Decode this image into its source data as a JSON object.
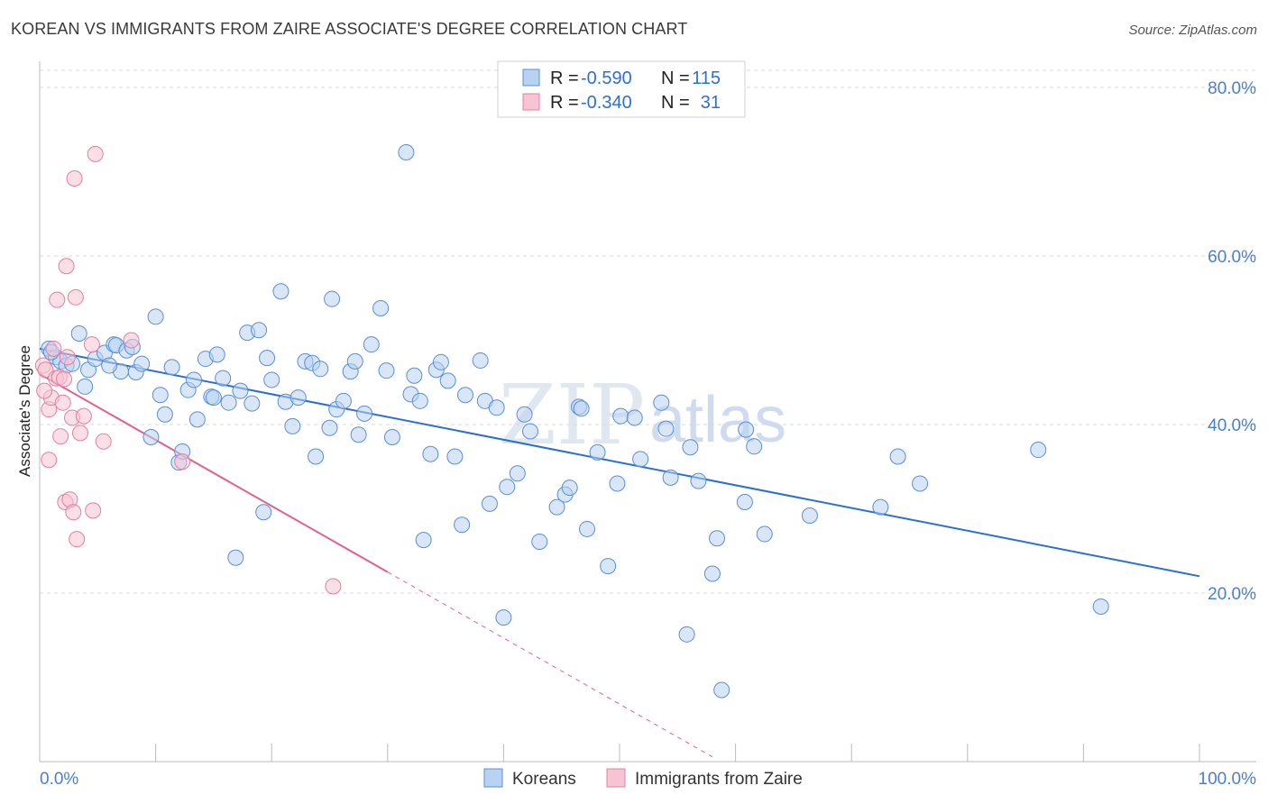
{
  "header": {
    "title": "KOREAN VS IMMIGRANTS FROM ZAIRE ASSOCIATE'S DEGREE CORRELATION CHART",
    "source": "Source: ZipAtlas.com"
  },
  "watermark": {
    "zip": "ZIP",
    "atlas": "atlas"
  },
  "legend": {
    "rows": [
      {
        "r_label": "R =",
        "r_value": "-0.590",
        "n_label": "N =",
        "n_value": "115"
      },
      {
        "r_label": "R =",
        "r_value": "-0.340",
        "n_label": "N =",
        "n_value": "31"
      }
    ]
  },
  "bottom_legend": {
    "items": [
      "Koreans",
      "Immigrants from Zaire"
    ]
  },
  "colors": {
    "koreans_fill": "#b8d2f2",
    "koreans_stroke": "#5a8fd6",
    "koreans_line": "#2b6fcf",
    "zaire_fill": "#f7c4d4",
    "zaire_stroke": "#e47fa0",
    "zaire_line": "#e0608f",
    "grid": "#d9d9d9",
    "axis": "#bbbbbb"
  },
  "chart_data": {
    "type": "scatter",
    "title": "KOREAN VS IMMIGRANTS FROM ZAIRE ASSOCIATE'S DEGREE CORRELATION CHART",
    "xlabel": "",
    "ylabel": "Associate's Degree",
    "xlim": [
      0,
      100
    ],
    "ylim": [
      0,
      80
    ],
    "x_tick_labels": [
      "0.0%",
      "100.0%"
    ],
    "y_ticks": [
      20,
      40,
      60,
      80
    ],
    "y_tick_labels": [
      "20.0%",
      "40.0%",
      "60.0%",
      "80.0%"
    ],
    "grid": true,
    "legend_position": "top-center",
    "series": [
      {
        "name": "Koreans",
        "r": -0.59,
        "n": 115,
        "trend": {
          "x0": 0,
          "y0": 49,
          "x1": 100,
          "y1": 22,
          "dashed_to": 100
        },
        "points": [
          [
            0.8,
            49
          ],
          [
            1.4,
            48
          ],
          [
            1.8,
            47.5
          ],
          [
            2.3,
            47
          ],
          [
            3.4,
            50.8
          ],
          [
            3.9,
            44.5
          ],
          [
            4.2,
            46.5
          ],
          [
            4.8,
            47.8
          ],
          [
            5.6,
            48.5
          ],
          [
            6.4,
            49.5
          ],
          [
            6.6,
            49.4
          ],
          [
            7.0,
            46.3
          ],
          [
            7.5,
            48.8
          ],
          [
            8.3,
            46.2
          ],
          [
            8.8,
            47.2
          ],
          [
            9.6,
            38.5
          ],
          [
            10.0,
            52.8
          ],
          [
            10.4,
            43.5
          ],
          [
            10.8,
            41.2
          ],
          [
            11.4,
            46.8
          ],
          [
            12.0,
            35.5
          ],
          [
            12.3,
            36.8
          ],
          [
            12.8,
            44.1
          ],
          [
            13.3,
            45.3
          ],
          [
            13.6,
            40.6
          ],
          [
            14.3,
            47.8
          ],
          [
            14.8,
            43.3
          ],
          [
            15.3,
            48.3
          ],
          [
            15.8,
            45.5
          ],
          [
            16.3,
            42.6
          ],
          [
            16.9,
            24.2
          ],
          [
            17.3,
            44.0
          ],
          [
            17.9,
            50.9
          ],
          [
            18.3,
            42.5
          ],
          [
            18.9,
            51.2
          ],
          [
            19.3,
            29.6
          ],
          [
            19.6,
            47.9
          ],
          [
            20.0,
            45.3
          ],
          [
            20.8,
            55.8
          ],
          [
            21.2,
            42.7
          ],
          [
            21.8,
            39.8
          ],
          [
            22.3,
            43.2
          ],
          [
            22.9,
            47.5
          ],
          [
            23.5,
            47.3
          ],
          [
            23.8,
            36.2
          ],
          [
            24.2,
            46.6
          ],
          [
            25.0,
            39.6
          ],
          [
            25.2,
            54.9
          ],
          [
            25.6,
            41.8
          ],
          [
            26.2,
            42.8
          ],
          [
            26.8,
            46.3
          ],
          [
            27.2,
            47.5
          ],
          [
            27.5,
            38.8
          ],
          [
            28.0,
            41.3
          ],
          [
            28.6,
            49.5
          ],
          [
            29.4,
            53.8
          ],
          [
            29.9,
            46.4
          ],
          [
            30.4,
            38.5
          ],
          [
            31.6,
            72.3
          ],
          [
            32.0,
            43.6
          ],
          [
            32.3,
            45.8
          ],
          [
            32.8,
            42.8
          ],
          [
            33.1,
            26.3
          ],
          [
            33.7,
            36.5
          ],
          [
            34.2,
            46.5
          ],
          [
            34.6,
            47.4
          ],
          [
            35.2,
            45.2
          ],
          [
            35.8,
            36.2
          ],
          [
            36.4,
            28.1
          ],
          [
            36.7,
            43.5
          ],
          [
            38.0,
            47.6
          ],
          [
            38.4,
            42.8
          ],
          [
            38.8,
            30.6
          ],
          [
            39.4,
            42.0
          ],
          [
            40.0,
            17.1
          ],
          [
            40.3,
            32.6
          ],
          [
            41.2,
            34.2
          ],
          [
            41.8,
            41.2
          ],
          [
            42.3,
            39.2
          ],
          [
            43.1,
            26.1
          ],
          [
            44.6,
            30.2
          ],
          [
            45.3,
            31.7
          ],
          [
            45.7,
            32.5
          ],
          [
            46.5,
            42.1
          ],
          [
            46.7,
            41.9
          ],
          [
            47.2,
            27.6
          ],
          [
            48.1,
            36.7
          ],
          [
            49.0,
            23.2
          ],
          [
            49.8,
            33.0
          ],
          [
            50.1,
            41.0
          ],
          [
            51.3,
            40.8
          ],
          [
            51.8,
            35.9
          ],
          [
            53.6,
            42.6
          ],
          [
            54.0,
            39.5
          ],
          [
            54.4,
            33.7
          ],
          [
            55.8,
            15.1
          ],
          [
            56.1,
            37.3
          ],
          [
            56.8,
            33.3
          ],
          [
            58.0,
            22.3
          ],
          [
            58.4,
            26.5
          ],
          [
            60.8,
            30.8
          ],
          [
            60.9,
            39.4
          ],
          [
            61.6,
            37.4
          ],
          [
            62.5,
            27.0
          ],
          [
            66.4,
            29.2
          ],
          [
            72.5,
            30.2
          ],
          [
            74.0,
            36.2
          ],
          [
            75.9,
            33.0
          ],
          [
            86.1,
            37.0
          ],
          [
            91.5,
            18.4
          ],
          [
            58.8,
            8.5
          ],
          [
            1.0,
            48.6
          ],
          [
            2.8,
            47.2
          ],
          [
            6.0,
            47.0
          ],
          [
            8.0,
            49.2
          ],
          [
            15.0,
            43.2
          ]
        ]
      },
      {
        "name": "Immigrants from Zaire",
        "r": -0.34,
        "n": 31,
        "trend": {
          "x0": 0,
          "y0": 46,
          "x1": 30,
          "y1": 22.5,
          "dashed_to": 58
        },
        "points": [
          [
            0.3,
            47.0
          ],
          [
            0.5,
            46.5
          ],
          [
            0.8,
            41.8
          ],
          [
            0.8,
            35.8
          ],
          [
            1.0,
            43.2
          ],
          [
            1.2,
            49.0
          ],
          [
            1.4,
            45.5
          ],
          [
            1.5,
            54.8
          ],
          [
            1.7,
            45.6
          ],
          [
            1.8,
            38.6
          ],
          [
            2.0,
            42.6
          ],
          [
            2.1,
            45.4
          ],
          [
            2.2,
            30.8
          ],
          [
            2.3,
            58.8
          ],
          [
            2.4,
            48.0
          ],
          [
            2.6,
            31.1
          ],
          [
            2.8,
            40.8
          ],
          [
            2.9,
            29.6
          ],
          [
            3.0,
            69.2
          ],
          [
            3.1,
            55.1
          ],
          [
            3.2,
            26.4
          ],
          [
            3.5,
            39.0
          ],
          [
            3.8,
            41.0
          ],
          [
            4.5,
            49.5
          ],
          [
            4.6,
            29.8
          ],
          [
            4.8,
            72.1
          ],
          [
            5.5,
            38.0
          ],
          [
            7.9,
            50.0
          ],
          [
            12.3,
            35.6
          ],
          [
            25.3,
            20.8
          ],
          [
            0.4,
            44.0
          ]
        ]
      }
    ]
  }
}
